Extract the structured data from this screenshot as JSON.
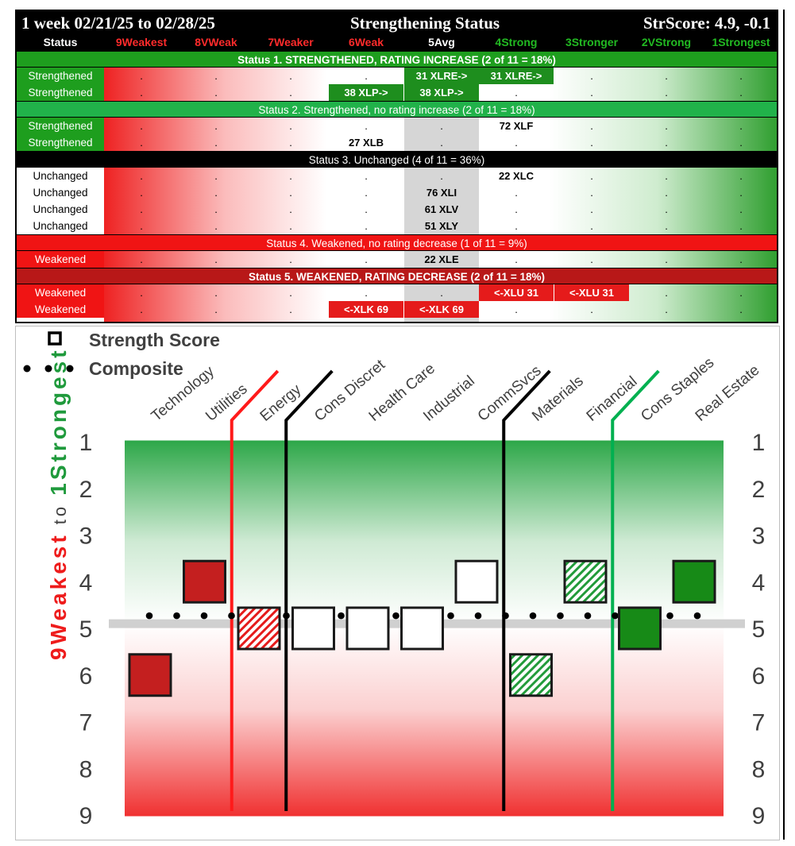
{
  "table": {
    "title_left": "1 week 02/21/25 to 02/28/25",
    "title_center": "Strengthening Status",
    "title_right": "StrScore: 4.9, -0.1",
    "header": {
      "status": "Status",
      "columns": [
        "9Weakest",
        "8VWeak",
        "7Weaker",
        "6Weak",
        "5Avg",
        "4Strong",
        "3Stronger",
        "2VStrong",
        "1Strongest"
      ],
      "column_colors": [
        "#ff2b2b",
        "#ff2b2b",
        "#ff2b2b",
        "#ff2b2b",
        "#ffffff",
        "#22bb22",
        "#22bb22",
        "#22bb22",
        "#22bb22"
      ]
    },
    "sections": [
      {
        "band": "Status 1. STRENGTHENED, RATING INCREASE (2 of 11 = 18%)",
        "rows": [
          {
            "label": "Strengthened",
            "cells": [
              {
                "col": 4,
                "text": "31 XLRE->",
                "style": "pill-green"
              },
              {
                "col": 5,
                "text": "31 XLRE->",
                "style": "pill-green"
              }
            ]
          },
          {
            "label": "Strengthened",
            "cells": [
              {
                "col": 3,
                "text": "38 XLP->",
                "style": "pill-green"
              },
              {
                "col": 4,
                "text": "38 XLP->",
                "style": "pill-green"
              }
            ]
          }
        ]
      },
      {
        "band": "Status 2. Strengthened, no rating increase (2 of 11 = 18%)",
        "rows": [
          {
            "label": "Strengthened",
            "cells": [
              {
                "col": 5,
                "text": "72 XLF",
                "style": "plain"
              }
            ]
          },
          {
            "label": "Strengthened",
            "cells": [
              {
                "col": 3,
                "text": "27 XLB",
                "style": "plain"
              }
            ]
          }
        ]
      },
      {
        "band": "Status 3. Unchanged (4 of 11 = 36%)",
        "rows": [
          {
            "label": "Unchanged",
            "cells": [
              {
                "col": 5,
                "text": "22 XLC",
                "style": "plain"
              }
            ]
          },
          {
            "label": "Unchanged",
            "cells": [
              {
                "col": 4,
                "text": "76 XLI",
                "style": "plain"
              }
            ]
          },
          {
            "label": "Unchanged",
            "cells": [
              {
                "col": 4,
                "text": "61 XLV",
                "style": "plain"
              }
            ]
          },
          {
            "label": "Unchanged",
            "cells": [
              {
                "col": 4,
                "text": "51 XLY",
                "style": "plain"
              }
            ]
          }
        ]
      },
      {
        "band": "Status 4. Weakened, no rating decrease (1 of 11 = 9%)",
        "rows": [
          {
            "label": "Weakened",
            "cells": [
              {
                "col": 4,
                "text": "22 XLE",
                "style": "plain"
              }
            ]
          }
        ]
      },
      {
        "band": "Status 5. WEAKENED, RATING DECREASE (2 of 11 = 18%)",
        "rows": [
          {
            "label": "Weakened",
            "cells": [
              {
                "col": 5,
                "text": "<-XLU 31",
                "style": "pill-red"
              },
              {
                "col": 6,
                "text": "<-XLU 31",
                "style": "pill-red"
              }
            ]
          },
          {
            "label": "Weakened",
            "cells": [
              {
                "col": 3,
                "text": "<-XLK 69",
                "style": "pill-red"
              },
              {
                "col": 4,
                "text": "<-XLK 69",
                "style": "pill-red"
              }
            ]
          }
        ]
      }
    ]
  },
  "chart_data": {
    "type": "scatter",
    "legend": [
      {
        "marker": "square",
        "label": "Strength Score"
      },
      {
        "marker": "dots",
        "label": "Composite"
      }
    ],
    "categories": [
      "Technology",
      "Utilities",
      "Energy",
      "Cons Discret",
      "Health Care",
      "Industrial",
      "CommSvcs",
      "Materials",
      "Financial",
      "Cons Staples",
      "Real Estate"
    ],
    "series": [
      {
        "name": "Strength Score",
        "values": [
          6,
          4,
          5,
          5,
          5,
          5,
          4,
          6,
          4,
          5,
          4
        ],
        "fills": [
          "#c41f1f",
          "#c41f1f",
          "hatch-red",
          "#ffffff",
          "#ffffff",
          "#ffffff",
          "#ffffff",
          "hatch-green",
          "hatch-green",
          "#178a17",
          "#178a17"
        ]
      },
      {
        "name": "Composite",
        "value": 4.9
      }
    ],
    "ylim": [
      1,
      9
    ],
    "y_ticks": [
      "1",
      "2",
      "3",
      "4",
      "5",
      "6",
      "7",
      "8",
      "9"
    ],
    "y_axis_left_label": [
      "9Weakest",
      " to ",
      "1Strongest"
    ],
    "colors": {
      "weak": "#ee1c1c",
      "strong": "#1f9a3c",
      "black": "#000000"
    },
    "dividers": [
      {
        "after_category": 1,
        "color": "#ff1a1a"
      },
      {
        "after_category": 2,
        "color": "#000000"
      },
      {
        "after_category": 6,
        "color": "#000000"
      },
      {
        "after_category": 8,
        "color": "#00b050"
      }
    ]
  }
}
